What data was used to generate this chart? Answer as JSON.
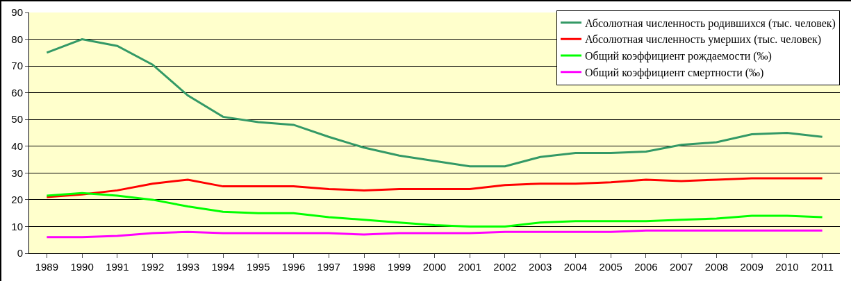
{
  "chart_data": {
    "type": "line",
    "categories": [
      "1989",
      "1990",
      "1991",
      "1992",
      "1993",
      "1994",
      "1995",
      "1996",
      "1997",
      "1998",
      "1999",
      "2000",
      "2001",
      "2002",
      "2003",
      "2004",
      "2005",
      "2006",
      "2007",
      "2008",
      "2009",
      "2010",
      "2011"
    ],
    "series": [
      {
        "name": "Абсолютная численность родившихся (тыс. человек)",
        "color": "#339966",
        "values": [
          75,
          80,
          77.5,
          70.5,
          59,
          51,
          49,
          48,
          43.5,
          39.5,
          36.5,
          34.5,
          32.5,
          32.5,
          36,
          37.5,
          37.5,
          38,
          40.5,
          41.5,
          44.5,
          45,
          43.5
        ]
      },
      {
        "name": "Абсолютная численность умерших (тыс. человек)",
        "color": "#ff0000",
        "values": [
          21,
          22,
          23.5,
          26,
          27.5,
          25,
          25,
          25,
          24,
          23.5,
          24,
          24,
          24,
          25.5,
          26,
          26,
          26.5,
          27.5,
          27,
          27.5,
          28,
          28,
          28
        ]
      },
      {
        "name": "Общий коэффициент рождаемости (‰)",
        "color": "#00ff00",
        "values": [
          21.5,
          22.5,
          21.5,
          20,
          17.5,
          15.5,
          15,
          15,
          13.5,
          12.5,
          11.5,
          10.5,
          10,
          10,
          11.5,
          12,
          12,
          12,
          12.5,
          13,
          14,
          14,
          13.5
        ]
      },
      {
        "name": "Общий коэффициент смертности (‰)",
        "color": "#ff00ff",
        "values": [
          6,
          6,
          6.5,
          7.5,
          8,
          7.5,
          7.5,
          7.5,
          7.5,
          7,
          7.5,
          7.5,
          7.5,
          8,
          8,
          8,
          8,
          8.5,
          8.5,
          8.5,
          8.5,
          8.5,
          8.5
        ]
      }
    ],
    "ylim": [
      0,
      90
    ],
    "yticks": [
      0,
      10,
      20,
      30,
      40,
      50,
      60,
      70,
      80,
      90
    ],
    "grid": "y",
    "legend": "top right",
    "marker": "none",
    "line_style": "solid"
  }
}
